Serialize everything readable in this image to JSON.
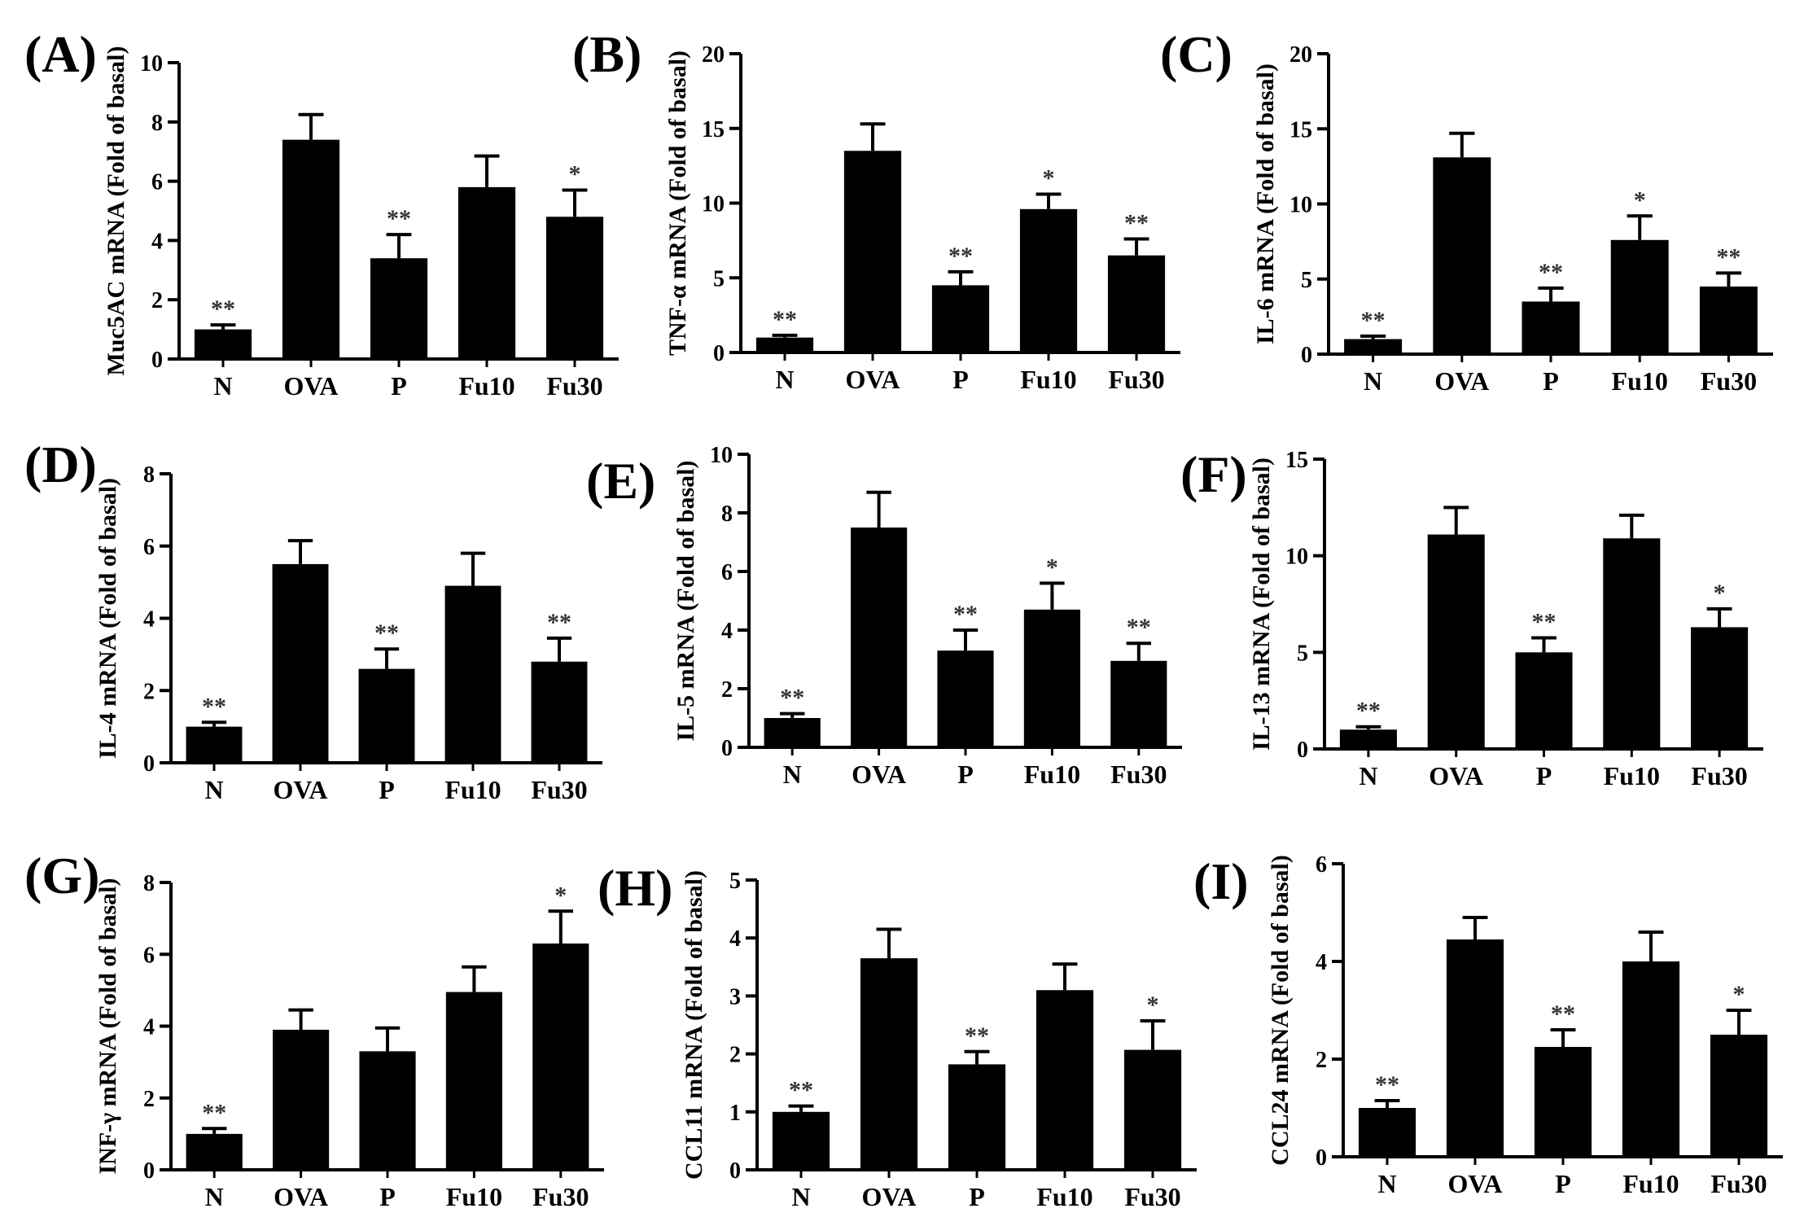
{
  "figure": {
    "bar_color": "#000000",
    "categories": [
      "N",
      "OVA",
      "P",
      "Fu10",
      "Fu30"
    ]
  },
  "chart_data": [
    {
      "panel": "(A)",
      "type": "bar",
      "ylabel": "Muc5AC mRNA (Fold of basal)",
      "ylim": [
        0,
        10
      ],
      "yticks": [
        0,
        2,
        4,
        6,
        8,
        10
      ],
      "categories": [
        "N",
        "OVA",
        "P",
        "Fu10",
        "Fu30"
      ],
      "values": [
        1.0,
        7.4,
        3.4,
        5.8,
        4.8
      ],
      "errors": [
        0.15,
        0.85,
        0.8,
        1.05,
        0.9
      ],
      "annotations": [
        "**",
        "",
        "**",
        "",
        "*"
      ]
    },
    {
      "panel": "(B)",
      "type": "bar",
      "ylabel": "TNF-α mRNA (Fold of basal)",
      "ylim": [
        0,
        20
      ],
      "yticks": [
        0,
        5,
        10,
        15,
        20
      ],
      "categories": [
        "N",
        "OVA",
        "P",
        "Fu10",
        "Fu30"
      ],
      "values": [
        1.0,
        13.5,
        4.5,
        9.6,
        6.5
      ],
      "errors": [
        0.15,
        1.8,
        0.9,
        1.0,
        1.1
      ],
      "annotations": [
        "**",
        "",
        "**",
        "*",
        "**"
      ]
    },
    {
      "panel": "(C)",
      "type": "bar",
      "ylabel": "IL-6 mRNA (Fold of basal)",
      "ylim": [
        0,
        20
      ],
      "yticks": [
        0,
        5,
        10,
        15,
        20
      ],
      "categories": [
        "N",
        "OVA",
        "P",
        "Fu10",
        "Fu30"
      ],
      "values": [
        1.0,
        13.1,
        3.5,
        7.6,
        4.5
      ],
      "errors": [
        0.2,
        1.6,
        0.9,
        1.6,
        0.9
      ],
      "annotations": [
        "**",
        "",
        "**",
        "*",
        "**"
      ]
    },
    {
      "panel": "(D)",
      "type": "bar",
      "ylabel": "IL-4 mRNA (Fold of basal)",
      "ylim": [
        0,
        8
      ],
      "yticks": [
        0,
        2,
        4,
        6,
        8
      ],
      "categories": [
        "N",
        "OVA",
        "P",
        "Fu10",
        "Fu30"
      ],
      "values": [
        1.0,
        5.5,
        2.6,
        4.9,
        2.8
      ],
      "errors": [
        0.12,
        0.65,
        0.55,
        0.9,
        0.65
      ],
      "annotations": [
        "**",
        "",
        "**",
        "",
        "**"
      ]
    },
    {
      "panel": "(E)",
      "type": "bar",
      "ylabel": "IL-5 mRNA (Fold of basal)",
      "ylim": [
        0,
        10
      ],
      "yticks": [
        0,
        2,
        4,
        6,
        8,
        10
      ],
      "categories": [
        "N",
        "OVA",
        "P",
        "Fu10",
        "Fu30"
      ],
      "values": [
        1.0,
        7.5,
        3.3,
        4.7,
        2.95
      ],
      "errors": [
        0.15,
        1.2,
        0.7,
        0.9,
        0.6
      ],
      "annotations": [
        "**",
        "",
        "**",
        "*",
        "**"
      ]
    },
    {
      "panel": "(F)",
      "type": "bar",
      "ylabel": "IL-13 mRNA (Fold of basal)",
      "ylim": [
        0,
        15
      ],
      "yticks": [
        0,
        5,
        10,
        15
      ],
      "categories": [
        "N",
        "OVA",
        "P",
        "Fu10",
        "Fu30"
      ],
      "values": [
        1.0,
        11.1,
        5.0,
        10.9,
        6.3
      ],
      "errors": [
        0.15,
        1.4,
        0.75,
        1.2,
        0.95
      ],
      "annotations": [
        "**",
        "",
        "**",
        "",
        "*"
      ]
    },
    {
      "panel": "(G)",
      "type": "bar",
      "ylabel": "INF-γ mRNA (Fold of basal)",
      "ylim": [
        0,
        8
      ],
      "yticks": [
        0,
        2,
        4,
        6,
        8
      ],
      "categories": [
        "N",
        "OVA",
        "P",
        "Fu10",
        "Fu30"
      ],
      "values": [
        1.0,
        3.9,
        3.3,
        4.95,
        6.3
      ],
      "errors": [
        0.15,
        0.55,
        0.65,
        0.7,
        0.9
      ],
      "annotations": [
        "**",
        "",
        "",
        "",
        "*"
      ]
    },
    {
      "panel": "(H)",
      "type": "bar",
      "ylabel": "CCL11 mRNA (Fold of basal)",
      "ylim": [
        0,
        5
      ],
      "yticks": [
        0,
        1,
        2,
        3,
        4,
        5
      ],
      "categories": [
        "N",
        "OVA",
        "P",
        "Fu10",
        "Fu30"
      ],
      "values": [
        1.0,
        3.65,
        1.82,
        3.1,
        2.07
      ],
      "errors": [
        0.1,
        0.5,
        0.22,
        0.45,
        0.5
      ],
      "annotations": [
        "**",
        "",
        "**",
        "",
        "*"
      ]
    },
    {
      "panel": "(I)",
      "type": "bar",
      "ylabel": "CCL24 mRNA (Fold of basal)",
      "ylim": [
        0,
        6
      ],
      "yticks": [
        0,
        2,
        4,
        6
      ],
      "categories": [
        "N",
        "OVA",
        "P",
        "Fu10",
        "Fu30"
      ],
      "values": [
        1.0,
        4.45,
        2.25,
        4.0,
        2.5
      ],
      "errors": [
        0.15,
        0.45,
        0.35,
        0.6,
        0.5
      ],
      "annotations": [
        "**",
        "",
        "**",
        "",
        "*"
      ]
    }
  ]
}
